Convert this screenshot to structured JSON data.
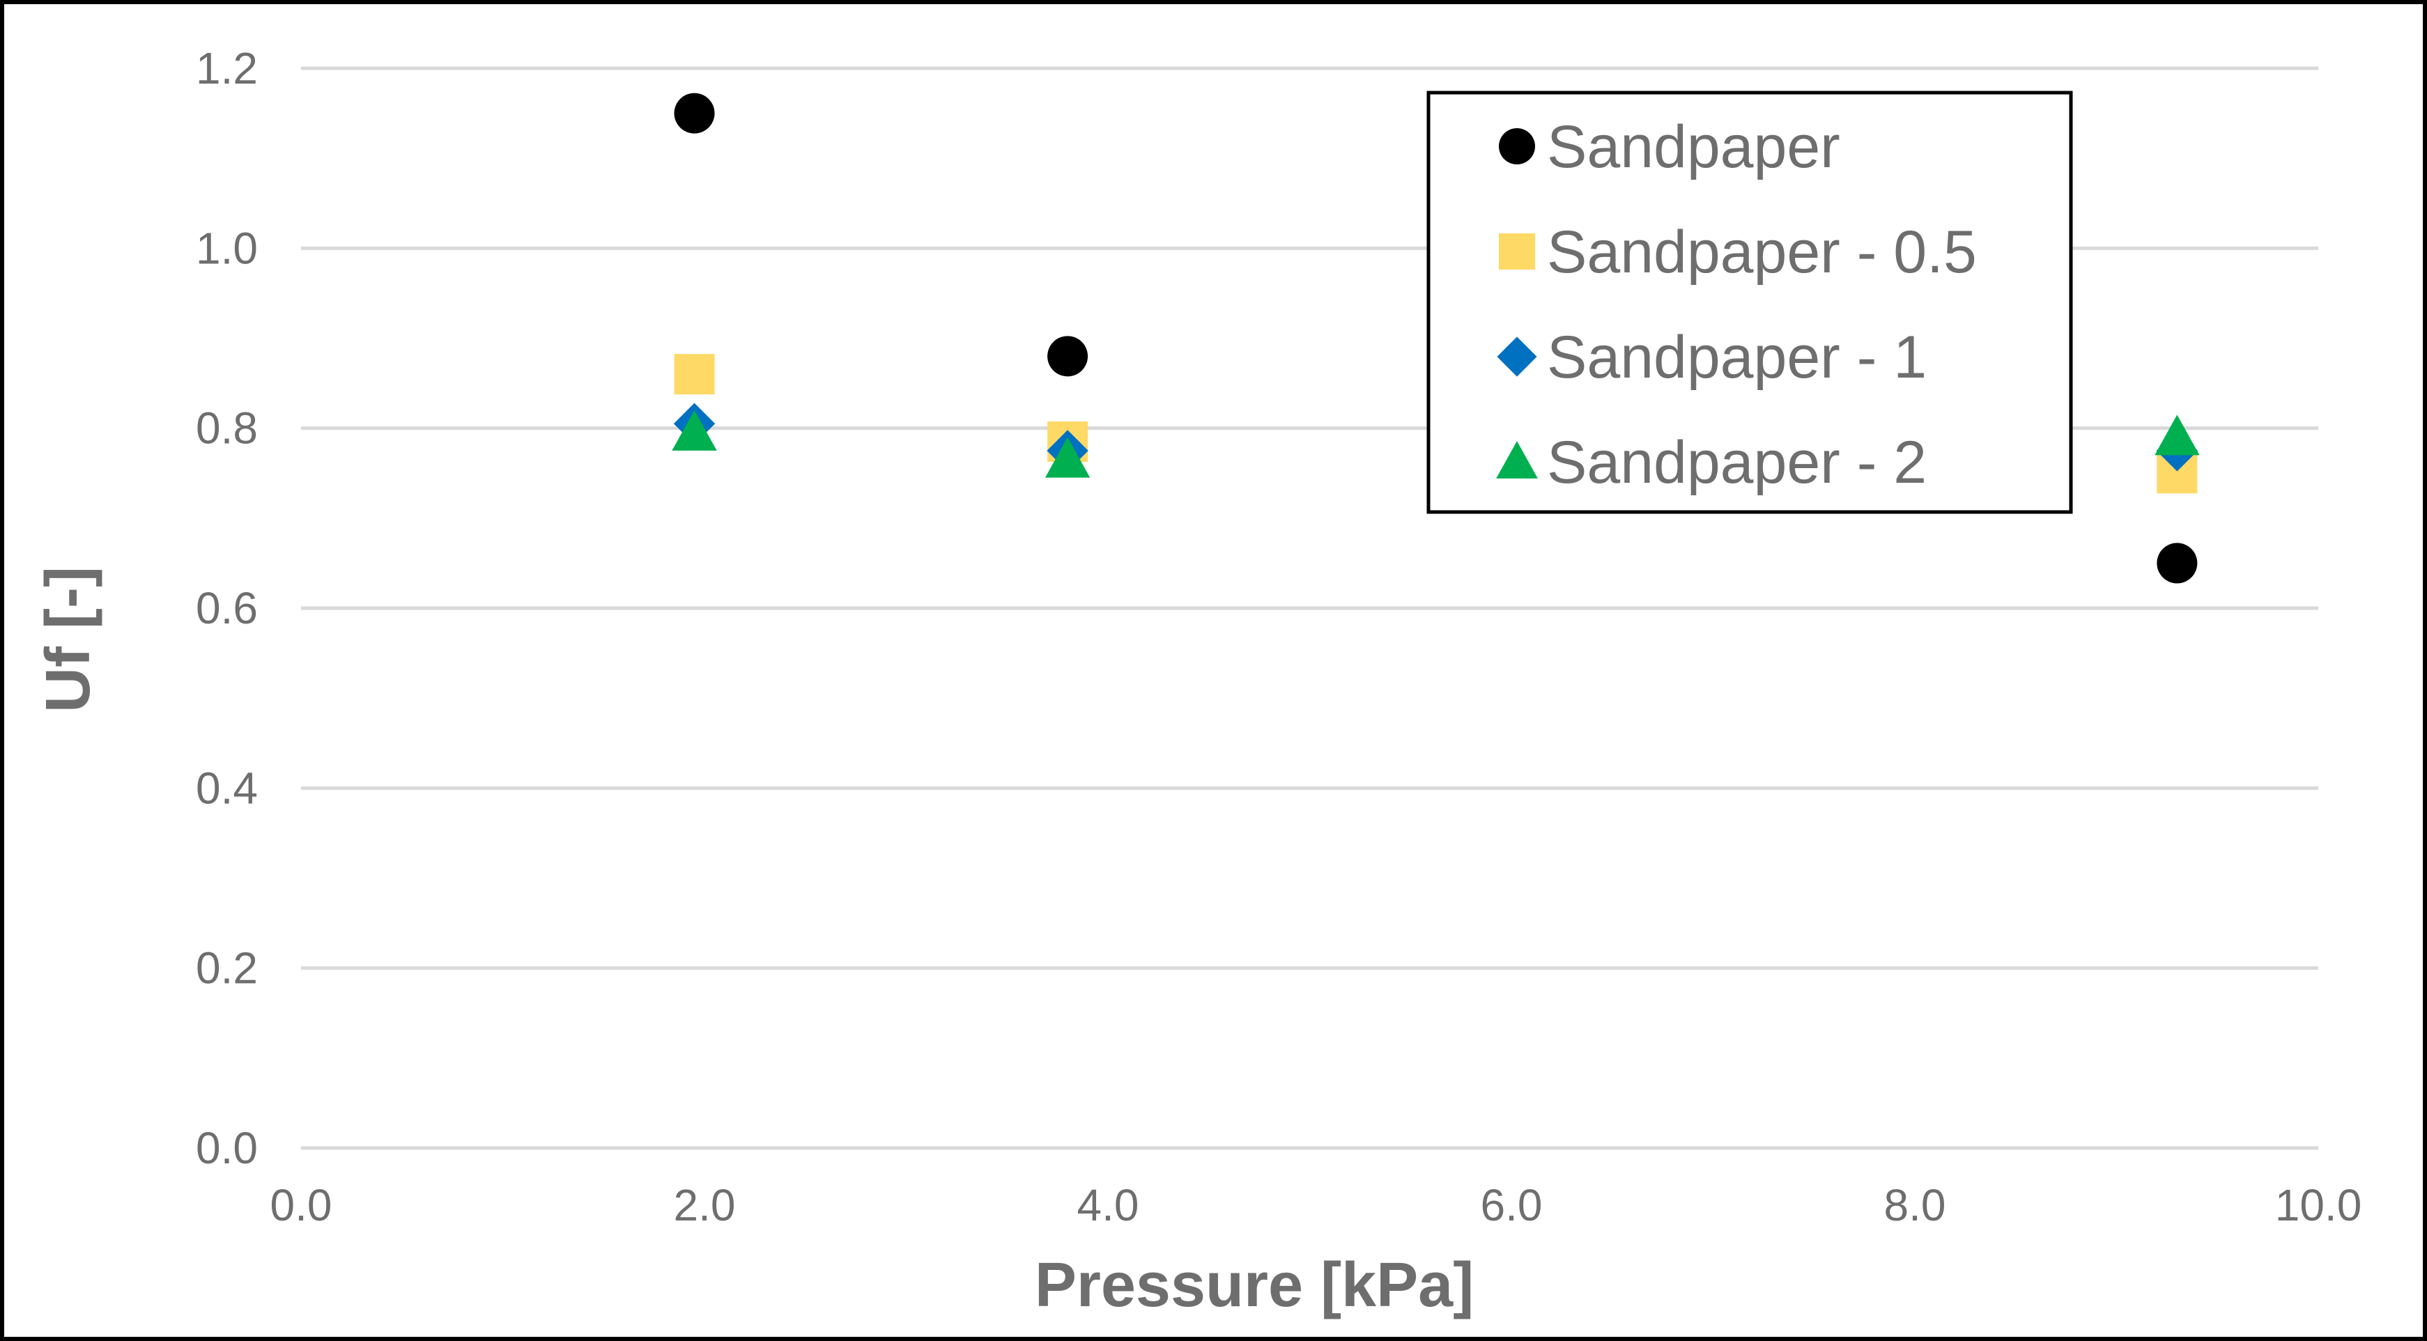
{
  "chart_data": {
    "type": "scatter",
    "title": "",
    "xlabel": "Pressure [kPa]",
    "ylabel": "Uf  [-]",
    "xlim": [
      0,
      10
    ],
    "ylim": [
      0,
      1.2
    ],
    "xticks": [
      0,
      2,
      4,
      6,
      8,
      10
    ],
    "yticks": [
      0,
      0.2,
      0.4,
      0.6,
      0.8,
      1.0,
      1.2
    ],
    "xtick_labels": [
      "0.0",
      "2.0",
      "4.0",
      "6.0",
      "8.0",
      "10.0"
    ],
    "ytick_labels": [
      "0.0",
      "0.2",
      "0.4",
      "0.6",
      "0.8",
      "1.0",
      "1.2"
    ],
    "grid": "horizontal",
    "legend_position": "top-right",
    "series": [
      {
        "name": "Sandpaper",
        "marker": "circle",
        "color": "#000000",
        "x": [
          1.95,
          3.8,
          9.3
        ],
        "y": [
          1.15,
          0.88,
          0.65
        ]
      },
      {
        "name": "Sandpaper - 0.5",
        "marker": "square",
        "color": "#ffd966",
        "x": [
          1.95,
          3.8,
          9.3
        ],
        "y": [
          0.86,
          0.785,
          0.75
        ]
      },
      {
        "name": "Sandpaper - 1",
        "marker": "diamond",
        "color": "#0070c0",
        "x": [
          1.95,
          3.8,
          9.3
        ],
        "y": [
          0.805,
          0.775,
          0.775
        ]
      },
      {
        "name": "Sandpaper - 2",
        "marker": "triangle",
        "color": "#00b050",
        "x": [
          1.95,
          3.8,
          9.3
        ],
        "y": [
          0.795,
          0.765,
          0.79
        ]
      }
    ]
  },
  "style": {
    "frame_color": "#000000",
    "grid_color": "#d9d9d9",
    "text_color": "#6e6e6e"
  }
}
